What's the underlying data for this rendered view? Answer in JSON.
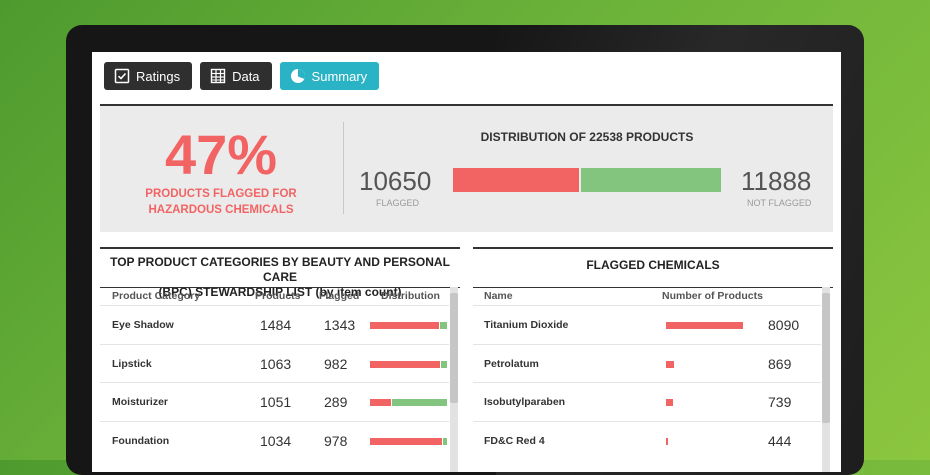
{
  "tabs": [
    {
      "label": "Ratings",
      "icon": "checkbox-icon",
      "active": false
    },
    {
      "label": "Data",
      "icon": "table-icon",
      "active": false
    },
    {
      "label": "Summary",
      "icon": "pie-chart-icon",
      "active": true
    }
  ],
  "summary": {
    "percent": "47%",
    "caption_line1": "PRODUCTS FLAGGED FOR",
    "caption_line2": "HAZARDOUS CHEMICALS",
    "distribution_title": "DISTRIBUTION OF 22538 PRODUCTS",
    "flagged_count": "10650",
    "flagged_label": "FLAGGED",
    "not_flagged_count": "11888",
    "not_flagged_label": "NOT FLAGGED",
    "flagged_fraction": 0.4725,
    "colors": {
      "flagged": "#f26464",
      "not_flagged": "#83c47e",
      "accent": "#2ab3c4"
    }
  },
  "categories_panel": {
    "title_line1": "TOP PRODUCT CATEGORIES BY BEAUTY AND PERSONAL CARE",
    "title_line2": "(BPC) STEWARDSHIP LIST (by item count)",
    "headers": {
      "category": "Product Category",
      "products": "Products",
      "flagged": "Flagged",
      "distribution": "Distribution"
    },
    "rows": [
      {
        "category": "Eye Shadow",
        "products": "1484",
        "flagged": "1343",
        "flagged_fraction": 0.905
      },
      {
        "category": "Lipstick",
        "products": "1063",
        "flagged": "982",
        "flagged_fraction": 0.924
      },
      {
        "category": "Moisturizer",
        "products": "1051",
        "flagged": "289",
        "flagged_fraction": 0.275
      },
      {
        "category": "Foundation",
        "products": "1034",
        "flagged": "978",
        "flagged_fraction": 0.946
      }
    ]
  },
  "chemicals_panel": {
    "title": "FLAGGED CHEMICALS",
    "headers": {
      "name": "Name",
      "count": "Number of Products"
    },
    "rows": [
      {
        "name": "Titanium Dioxide",
        "count": "8090",
        "value": 8090
      },
      {
        "name": "Petrolatum",
        "count": "869",
        "value": 869
      },
      {
        "name": "Isobutylparaben",
        "count": "739",
        "value": 739
      },
      {
        "name": "FD&C Red 4",
        "count": "444",
        "value": 444
      }
    ]
  }
}
